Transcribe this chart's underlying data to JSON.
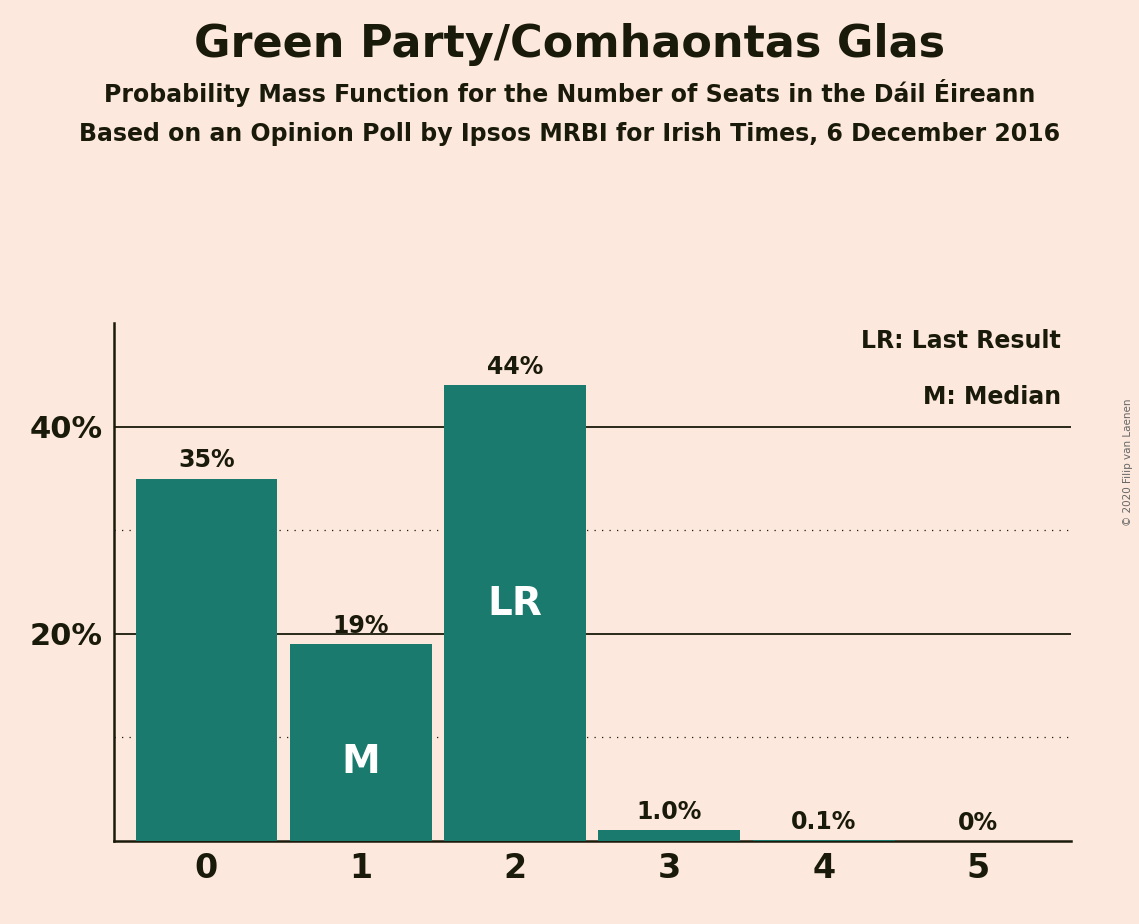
{
  "title": "Green Party/Comhaontas Glas",
  "subtitle1": "Probability Mass Function for the Number of Seats in the Dáil Éireann",
  "subtitle2": "Based on an Opinion Poll by Ipsos MRBI for Irish Times, 6 December 2016",
  "categories": [
    0,
    1,
    2,
    3,
    4,
    5
  ],
  "values": [
    0.35,
    0.19,
    0.44,
    0.01,
    0.001,
    0.0
  ],
  "labels": [
    "35%",
    "19%",
    "44%",
    "1.0%",
    "0.1%",
    "0%"
  ],
  "bar_color": "#1a7a6e",
  "background_color": "#fce8dc",
  "text_color": "#1a1a0a",
  "bar_text_color_inside": "#ffffff",
  "bar_text_color_outside": "#1a1a0a",
  "yticks": [
    0.0,
    0.2,
    0.4
  ],
  "ytick_labels": [
    "",
    "20%",
    "40%"
  ],
  "ylim": [
    0,
    0.5
  ],
  "solid_gridlines": [
    0.2,
    0.4
  ],
  "dotted_gridlines": [
    0.1,
    0.3
  ],
  "lr_bar": 2,
  "median_bar": 1,
  "legend_line1": "LR: Last Result",
  "legend_line2": "M: Median",
  "watermark": "© 2020 Filip van Laenen",
  "bar_width": 0.92
}
